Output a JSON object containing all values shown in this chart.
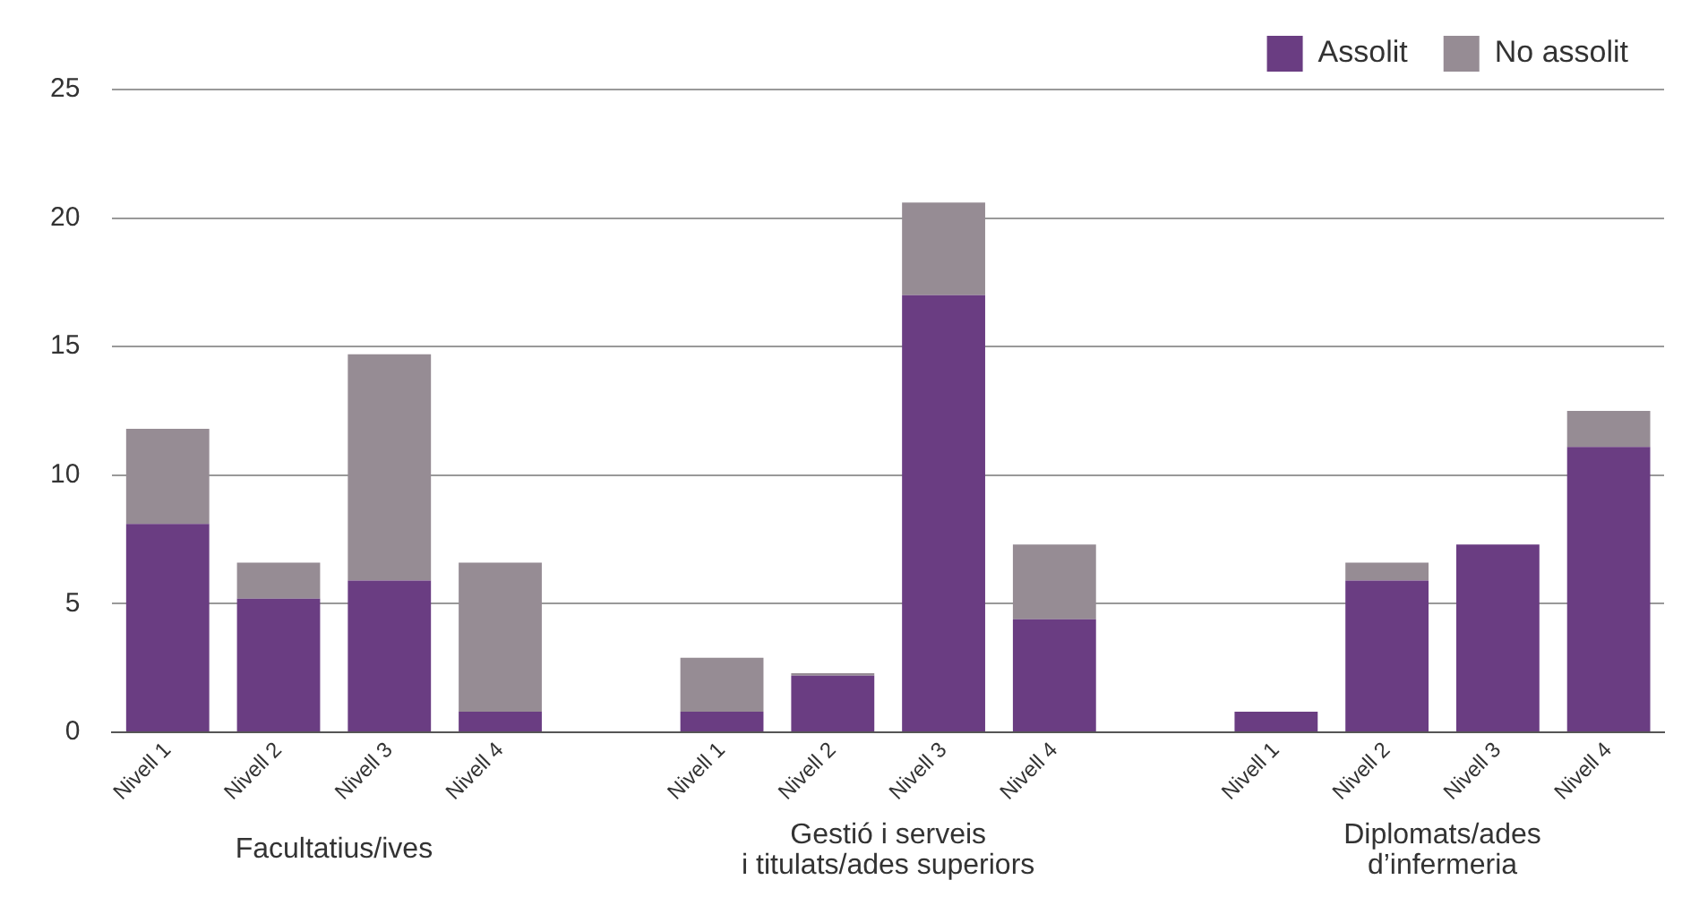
{
  "chart_data": {
    "type": "bar",
    "stacked": true,
    "categories": [
      "Nivell 1",
      "Nivell 2",
      "Nivell 3",
      "Nivell 4",
      null,
      "Nivell 1",
      "Nivell 2",
      "Nivell 3",
      "Nivell 4",
      null,
      "Nivell 1",
      "Nivell 2",
      "Nivell 3",
      "Nivell 4"
    ],
    "series": [
      {
        "name": "Assolit",
        "color": "#6a3d82",
        "values": [
          8.1,
          5.2,
          5.9,
          0.8,
          null,
          0.8,
          2.2,
          17,
          4.4,
          null,
          0.8,
          5.9,
          7.3,
          11.1
        ]
      },
      {
        "name": "No assolit",
        "color": "#968c94",
        "values": [
          3.7,
          1.4,
          8.8,
          5.8,
          null,
          2.1,
          0.1,
          3.6,
          2.9,
          null,
          0,
          0.7,
          0,
          1.4
        ]
      }
    ],
    "ylim": [
      0,
      25
    ],
    "yticks": [
      0,
      5,
      10,
      15,
      20,
      25
    ],
    "grid": "y",
    "legend": "top right",
    "annotations": [
      "Facultatius/ives",
      "Gestió i serveis\ni titulats/ades superiors",
      "Diplomats/ades\nd’infermeria"
    ]
  }
}
